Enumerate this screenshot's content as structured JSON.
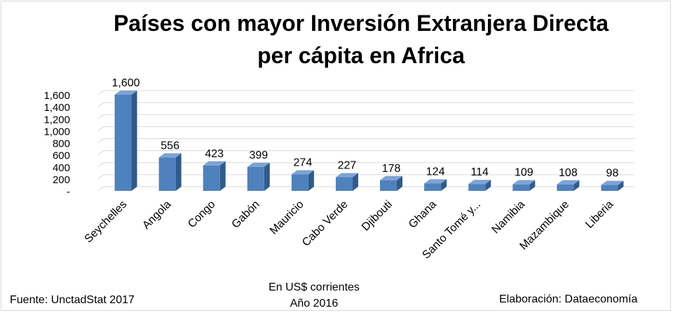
{
  "title_line1": "Países con mayor Inversión Extranjera Directa",
  "title_line2": "per cápita en Africa",
  "footer": {
    "source": "Fuente: UnctadStat 2017",
    "units": "En US$ corrientes",
    "year": "Año 2016",
    "credit": "Elaboración: Dataeconomía"
  },
  "chart_data": {
    "type": "bar",
    "title": "Países con mayor Inversión Extranjera Directa per cápita en Africa",
    "categories": [
      "Seychelles",
      "Angola",
      "Congo",
      "Gabón",
      "Mauricio",
      "Cabo Verde",
      "Djibouti",
      "Ghana",
      "Santo Tomé y...",
      "Namibia",
      "Mazambique",
      "Liberia"
    ],
    "values": [
      1600,
      556,
      423,
      399,
      274,
      227,
      178,
      124,
      114,
      109,
      108,
      98
    ],
    "value_labels": [
      "1,600",
      "556",
      "423",
      "399",
      "274",
      "227",
      "178",
      "124",
      "114",
      "109",
      "108",
      "98"
    ],
    "yticks": [
      "-",
      "200",
      "400",
      "600",
      "800",
      "1,000",
      "1,200",
      "1,400",
      "1,600"
    ],
    "ytick_values": [
      0,
      200,
      400,
      600,
      800,
      1000,
      1200,
      1400,
      1600
    ],
    "ylim": [
      0,
      1600
    ],
    "grid": true,
    "bar_style": "3d",
    "colors": {
      "bar_front": "#4f81bd",
      "bar_side": "#2f5b8c",
      "bar_top": "#7ea3d4",
      "grid": "#d9d9d9"
    }
  }
}
